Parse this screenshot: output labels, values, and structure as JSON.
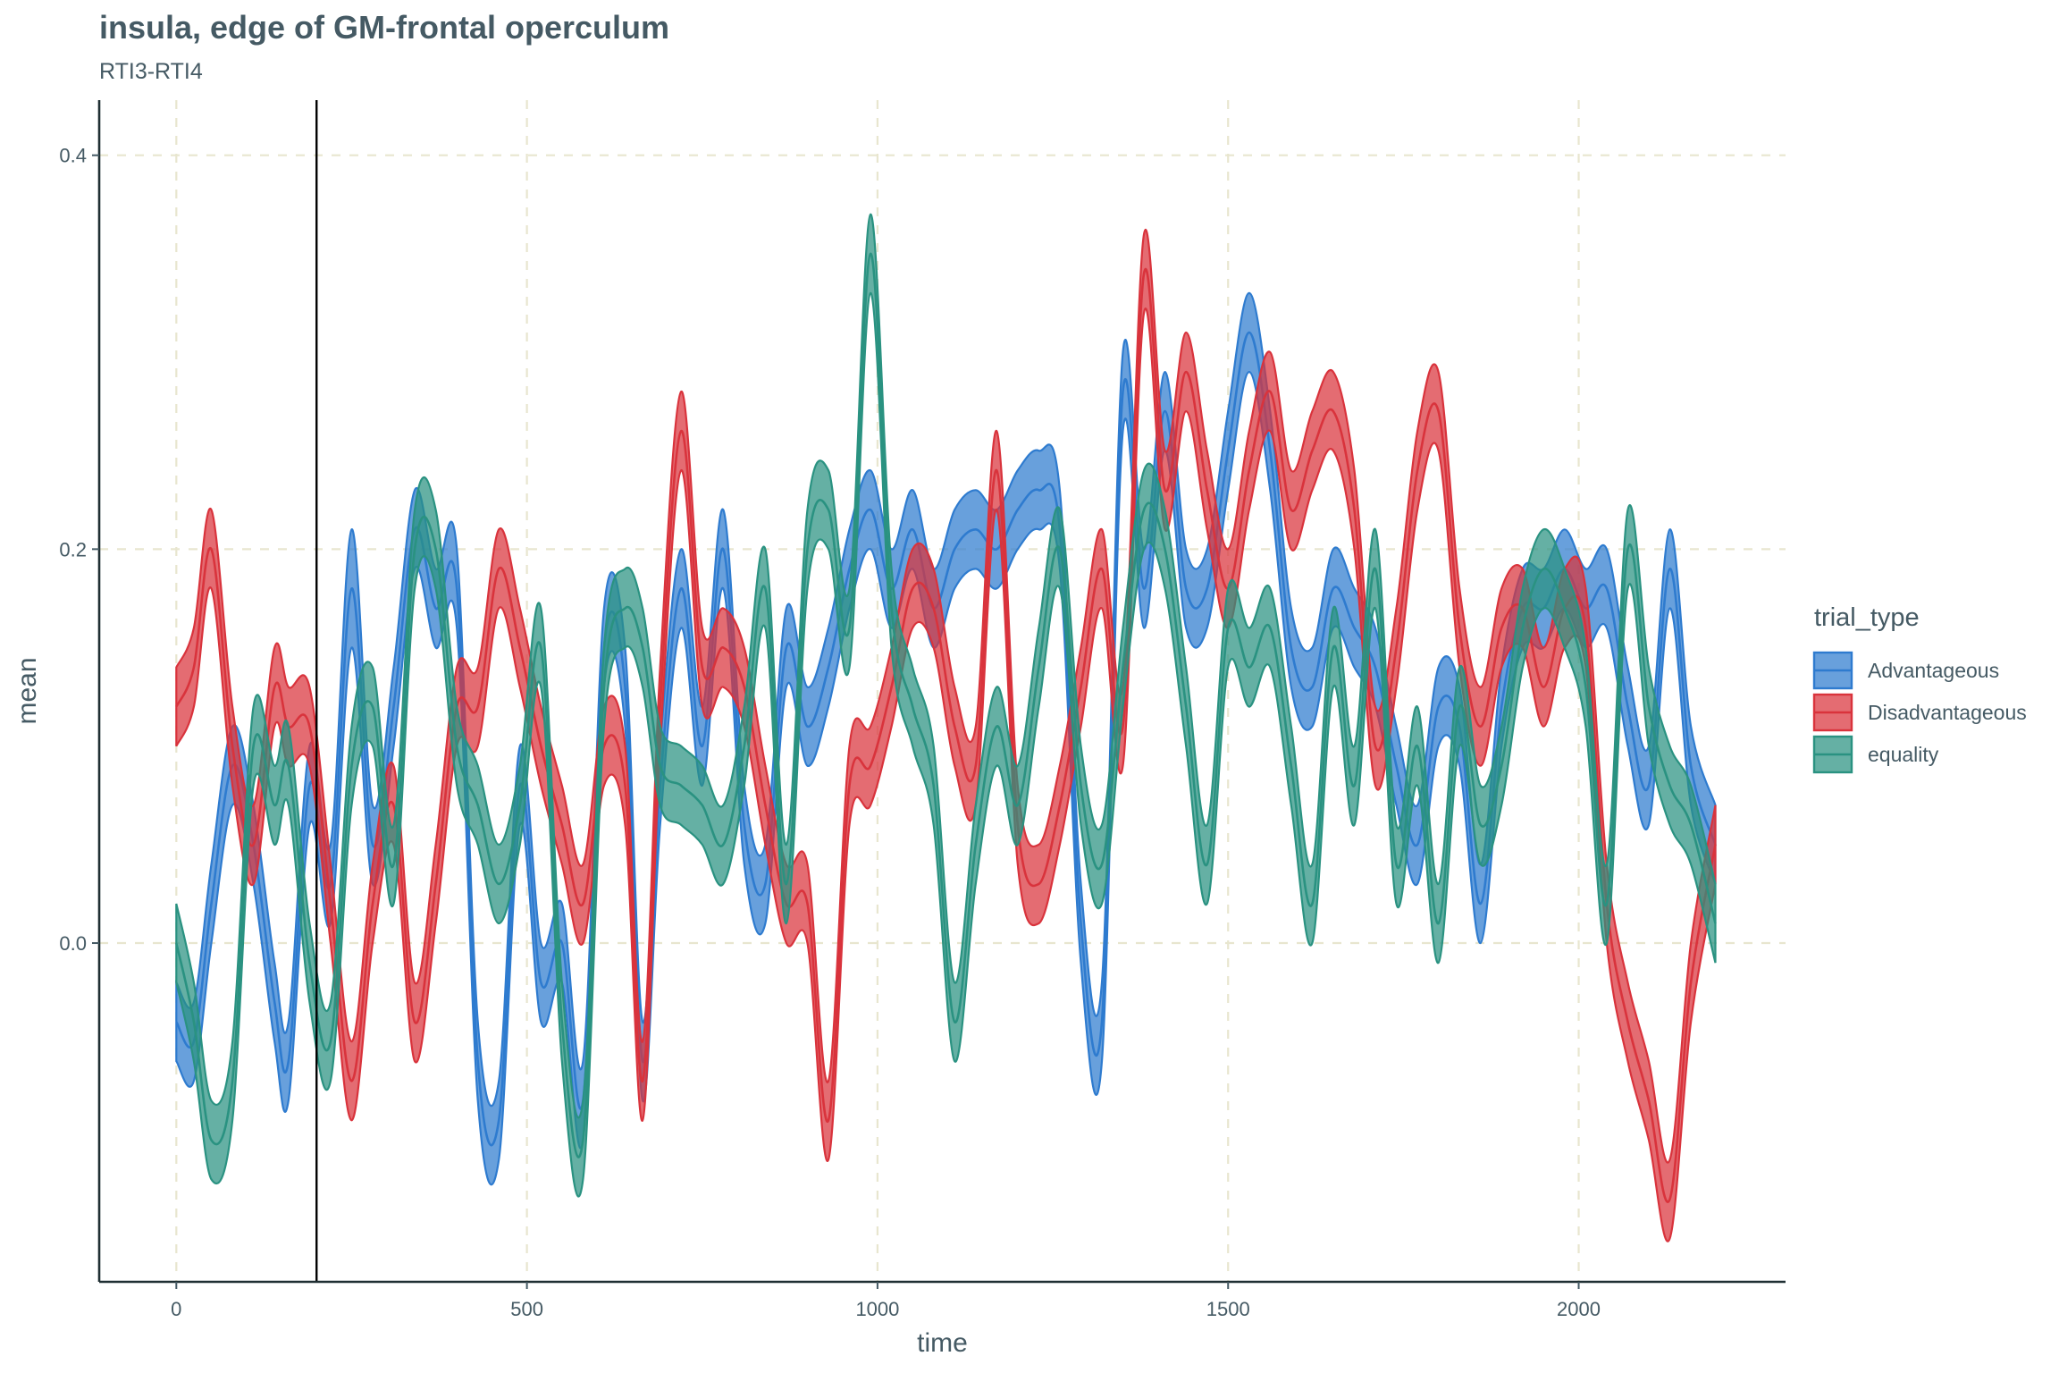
{
  "chart_data": {
    "type": "area",
    "title": "insula, edge of GM-frontal operculum",
    "subtitle": "RTI3-RTI4",
    "xlabel": "time",
    "ylabel": "mean",
    "xlim": [
      -110,
      2295
    ],
    "ylim": [
      -0.172,
      0.428
    ],
    "xticks": [
      0,
      500,
      1000,
      1500,
      2000
    ],
    "xtick_labels": [
      "0",
      "500",
      "1000",
      "1500",
      "2000"
    ],
    "yticks": [
      0.0,
      0.2,
      0.4
    ],
    "ytick_labels": [
      "0.0",
      "0.2",
      "0.4"
    ],
    "grid": "dashed major gridlines",
    "vline_x": 200,
    "legend": {
      "title": "trial_type",
      "position": "right"
    },
    "series": [
      {
        "name": "Advantageous",
        "color": "#2e7bcf",
        "x": [
          0,
          25,
          50,
          80,
          110,
          140,
          160,
          190,
          220,
          250,
          280,
          310,
          340,
          370,
          400,
          430,
          460,
          490,
          520,
          550,
          580,
          610,
          640,
          665,
          690,
          720,
          750,
          780,
          810,
          840,
          870,
          900,
          930,
          960,
          990,
          1020,
          1050,
          1080,
          1110,
          1140,
          1170,
          1200,
          1230,
          1260,
          1290,
          1320,
          1350,
          1380,
          1410,
          1440,
          1470,
          1500,
          1530,
          1560,
          1590,
          1620,
          1650,
          1680,
          1710,
          1740,
          1770,
          1800,
          1830,
          1860,
          1890,
          1920,
          1950,
          1980,
          2010,
          2040,
          2070,
          2100,
          2130,
          2160,
          2195
        ],
        "mean": [
          -0.04,
          -0.05,
          0.02,
          0.09,
          0.05,
          -0.03,
          -0.06,
          0.08,
          0.03,
          0.18,
          0.05,
          0.12,
          0.21,
          0.17,
          0.18,
          -0.06,
          -0.09,
          0.08,
          -0.02,
          0.0,
          -0.08,
          0.15,
          0.13,
          -0.06,
          0.08,
          0.18,
          0.1,
          0.2,
          0.06,
          0.03,
          0.15,
          0.11,
          0.14,
          0.19,
          0.22,
          0.18,
          0.21,
          0.17,
          0.2,
          0.21,
          0.2,
          0.22,
          0.23,
          0.21,
          0.01,
          -0.04,
          0.28,
          0.18,
          0.27,
          0.18,
          0.18,
          0.25,
          0.31,
          0.25,
          0.15,
          0.13,
          0.18,
          0.16,
          0.14,
          0.09,
          0.05,
          0.12,
          0.11,
          0.02,
          0.12,
          0.17,
          0.17,
          0.19,
          0.17,
          0.18,
          0.12,
          0.08,
          0.19,
          0.09,
          0.05
        ],
        "lower": [
          -0.06,
          -0.07,
          0.0,
          0.07,
          0.03,
          -0.05,
          -0.08,
          0.06,
          0.01,
          0.15,
          0.03,
          0.1,
          0.19,
          0.15,
          0.16,
          -0.08,
          -0.11,
          0.06,
          -0.04,
          -0.02,
          -0.1,
          0.13,
          0.11,
          -0.08,
          0.06,
          0.16,
          0.08,
          0.18,
          0.04,
          0.01,
          0.13,
          0.09,
          0.12,
          0.17,
          0.2,
          0.16,
          0.19,
          0.15,
          0.18,
          0.19,
          0.18,
          0.2,
          0.21,
          0.19,
          -0.01,
          -0.06,
          0.26,
          0.16,
          0.25,
          0.16,
          0.16,
          0.23,
          0.29,
          0.23,
          0.13,
          0.11,
          0.16,
          0.14,
          0.12,
          0.07,
          0.03,
          0.1,
          0.09,
          0.0,
          0.1,
          0.15,
          0.15,
          0.17,
          0.15,
          0.16,
          0.1,
          0.06,
          0.17,
          0.07,
          0.03
        ],
        "upper": [
          -0.02,
          -0.03,
          0.04,
          0.11,
          0.07,
          -0.01,
          -0.04,
          0.1,
          0.05,
          0.21,
          0.07,
          0.14,
          0.23,
          0.19,
          0.2,
          -0.04,
          -0.07,
          0.1,
          0.0,
          0.02,
          -0.06,
          0.17,
          0.15,
          -0.04,
          0.1,
          0.2,
          0.12,
          0.22,
          0.08,
          0.05,
          0.17,
          0.13,
          0.16,
          0.21,
          0.24,
          0.2,
          0.23,
          0.19,
          0.22,
          0.23,
          0.22,
          0.24,
          0.25,
          0.23,
          0.03,
          -0.02,
          0.3,
          0.2,
          0.29,
          0.2,
          0.2,
          0.27,
          0.33,
          0.27,
          0.17,
          0.15,
          0.2,
          0.18,
          0.16,
          0.11,
          0.07,
          0.14,
          0.13,
          0.04,
          0.14,
          0.19,
          0.19,
          0.21,
          0.19,
          0.2,
          0.14,
          0.1,
          0.21,
          0.11,
          0.07
        ]
      },
      {
        "name": "Disadvantageous",
        "color": "#d9333c",
        "x": [
          0,
          25,
          50,
          80,
          110,
          140,
          160,
          190,
          220,
          250,
          280,
          310,
          340,
          370,
          400,
          430,
          460,
          490,
          520,
          550,
          580,
          610,
          640,
          665,
          690,
          720,
          750,
          780,
          810,
          840,
          870,
          900,
          930,
          960,
          990,
          1020,
          1050,
          1080,
          1110,
          1140,
          1170,
          1200,
          1230,
          1260,
          1290,
          1320,
          1350,
          1380,
          1410,
          1440,
          1470,
          1500,
          1530,
          1560,
          1590,
          1620,
          1650,
          1680,
          1710,
          1740,
          1770,
          1800,
          1830,
          1860,
          1890,
          1920,
          1950,
          1980,
          2010,
          2040,
          2070,
          2100,
          2130,
          2160,
          2195
        ],
        "mean": [
          0.12,
          0.14,
          0.2,
          0.1,
          0.05,
          0.13,
          0.11,
          0.11,
          0.02,
          -0.07,
          0.02,
          0.07,
          -0.04,
          0.03,
          0.12,
          0.12,
          0.19,
          0.15,
          0.1,
          0.06,
          0.02,
          0.1,
          0.08,
          -0.07,
          0.12,
          0.26,
          0.14,
          0.15,
          0.13,
          0.07,
          0.02,
          0.02,
          -0.09,
          0.08,
          0.09,
          0.13,
          0.18,
          0.17,
          0.11,
          0.09,
          0.24,
          0.06,
          0.03,
          0.07,
          0.13,
          0.19,
          0.11,
          0.34,
          0.23,
          0.29,
          0.23,
          0.18,
          0.24,
          0.28,
          0.22,
          0.25,
          0.27,
          0.22,
          0.1,
          0.15,
          0.24,
          0.27,
          0.16,
          0.11,
          0.16,
          0.17,
          0.13,
          0.17,
          0.16,
          0.02,
          -0.04,
          -0.08,
          -0.13,
          -0.02,
          0.05
        ],
        "lower": [
          0.1,
          0.12,
          0.18,
          0.08,
          0.03,
          0.11,
          0.09,
          0.09,
          0.0,
          -0.09,
          0.0,
          0.05,
          -0.06,
          0.01,
          0.1,
          0.1,
          0.17,
          0.13,
          0.08,
          0.04,
          0.0,
          0.08,
          0.06,
          -0.09,
          0.1,
          0.24,
          0.12,
          0.13,
          0.11,
          0.05,
          0.0,
          0.0,
          -0.11,
          0.06,
          0.07,
          0.11,
          0.16,
          0.15,
          0.09,
          0.07,
          0.22,
          0.04,
          0.01,
          0.05,
          0.11,
          0.17,
          0.09,
          0.32,
          0.21,
          0.27,
          0.21,
          0.16,
          0.22,
          0.26,
          0.2,
          0.23,
          0.25,
          0.2,
          0.08,
          0.13,
          0.22,
          0.25,
          0.14,
          0.09,
          0.14,
          0.15,
          0.11,
          0.15,
          0.14,
          0.0,
          -0.06,
          -0.1,
          -0.15,
          -0.04,
          0.03
        ],
        "upper": [
          0.14,
          0.16,
          0.22,
          0.12,
          0.07,
          0.15,
          0.13,
          0.13,
          0.04,
          -0.05,
          0.04,
          0.09,
          -0.02,
          0.05,
          0.14,
          0.14,
          0.21,
          0.17,
          0.12,
          0.08,
          0.04,
          0.12,
          0.1,
          -0.05,
          0.14,
          0.28,
          0.16,
          0.17,
          0.15,
          0.09,
          0.04,
          0.04,
          -0.07,
          0.1,
          0.11,
          0.15,
          0.2,
          0.19,
          0.13,
          0.11,
          0.26,
          0.08,
          0.05,
          0.09,
          0.15,
          0.21,
          0.13,
          0.36,
          0.25,
          0.31,
          0.25,
          0.2,
          0.26,
          0.3,
          0.24,
          0.27,
          0.29,
          0.24,
          0.12,
          0.17,
          0.26,
          0.29,
          0.18,
          0.13,
          0.18,
          0.19,
          0.15,
          0.19,
          0.18,
          0.04,
          -0.02,
          -0.06,
          -0.11,
          0.0,
          0.07
        ]
      },
      {
        "name": "equality",
        "color": "#2a9281",
        "x": [
          0,
          25,
          50,
          80,
          110,
          140,
          160,
          190,
          220,
          250,
          280,
          310,
          340,
          370,
          400,
          430,
          460,
          490,
          520,
          550,
          580,
          610,
          640,
          665,
          690,
          720,
          750,
          780,
          810,
          840,
          870,
          900,
          930,
          960,
          990,
          1020,
          1050,
          1080,
          1110,
          1140,
          1170,
          1200,
          1230,
          1260,
          1290,
          1320,
          1350,
          1380,
          1410,
          1440,
          1470,
          1500,
          1530,
          1560,
          1590,
          1620,
          1650,
          1680,
          1710,
          1740,
          1770,
          1800,
          1830,
          1860,
          1890,
          1920,
          1950,
          1980,
          2010,
          2040,
          2070,
          2100,
          2130,
          2160,
          2195
        ],
        "mean": [
          0.0,
          -0.04,
          -0.1,
          -0.07,
          0.1,
          0.07,
          0.09,
          -0.01,
          -0.05,
          0.09,
          0.12,
          0.04,
          0.2,
          0.2,
          0.1,
          0.07,
          0.03,
          0.07,
          0.15,
          -0.04,
          -0.1,
          0.13,
          0.17,
          0.15,
          0.09,
          0.08,
          0.07,
          0.05,
          0.1,
          0.18,
          0.03,
          0.2,
          0.22,
          0.16,
          0.35,
          0.17,
          0.12,
          0.08,
          -0.04,
          0.05,
          0.11,
          0.07,
          0.14,
          0.2,
          0.08,
          0.04,
          0.14,
          0.22,
          0.2,
          0.12,
          0.04,
          0.16,
          0.14,
          0.16,
          0.09,
          0.02,
          0.15,
          0.08,
          0.19,
          0.04,
          0.1,
          0.01,
          0.12,
          0.06,
          0.09,
          0.16,
          0.19,
          0.17,
          0.13,
          0.02,
          0.2,
          0.12,
          0.08,
          0.06,
          0.01
        ],
        "lower": [
          -0.02,
          -0.06,
          -0.12,
          -0.09,
          0.08,
          0.05,
          0.07,
          -0.03,
          -0.07,
          0.07,
          0.1,
          0.02,
          0.18,
          0.18,
          0.08,
          0.05,
          0.01,
          0.05,
          0.13,
          -0.06,
          -0.12,
          0.11,
          0.15,
          0.13,
          0.07,
          0.06,
          0.05,
          0.03,
          0.08,
          0.16,
          0.01,
          0.18,
          0.2,
          0.14,
          0.33,
          0.15,
          0.1,
          0.06,
          -0.06,
          0.03,
          0.09,
          0.05,
          0.12,
          0.18,
          0.06,
          0.02,
          0.12,
          0.2,
          0.18,
          0.1,
          0.02,
          0.14,
          0.12,
          0.14,
          0.07,
          0.0,
          0.13,
          0.06,
          0.17,
          0.02,
          0.08,
          -0.01,
          0.1,
          0.04,
          0.07,
          0.14,
          0.17,
          0.15,
          0.11,
          0.0,
          0.18,
          0.1,
          0.06,
          0.04,
          -0.01
        ],
        "upper": [
          0.02,
          -0.02,
          -0.08,
          -0.05,
          0.12,
          0.09,
          0.11,
          0.01,
          -0.03,
          0.11,
          0.14,
          0.06,
          0.22,
          0.22,
          0.12,
          0.09,
          0.05,
          0.09,
          0.17,
          -0.02,
          -0.08,
          0.15,
          0.19,
          0.17,
          0.11,
          0.1,
          0.09,
          0.07,
          0.12,
          0.2,
          0.05,
          0.22,
          0.24,
          0.18,
          0.37,
          0.19,
          0.14,
          0.1,
          -0.02,
          0.07,
          0.13,
          0.09,
          0.16,
          0.22,
          0.1,
          0.06,
          0.16,
          0.24,
          0.22,
          0.14,
          0.06,
          0.18,
          0.16,
          0.18,
          0.11,
          0.04,
          0.17,
          0.1,
          0.21,
          0.06,
          0.12,
          0.03,
          0.14,
          0.08,
          0.11,
          0.18,
          0.21,
          0.19,
          0.15,
          0.04,
          0.22,
          0.14,
          0.1,
          0.08,
          0.03
        ]
      }
    ]
  }
}
